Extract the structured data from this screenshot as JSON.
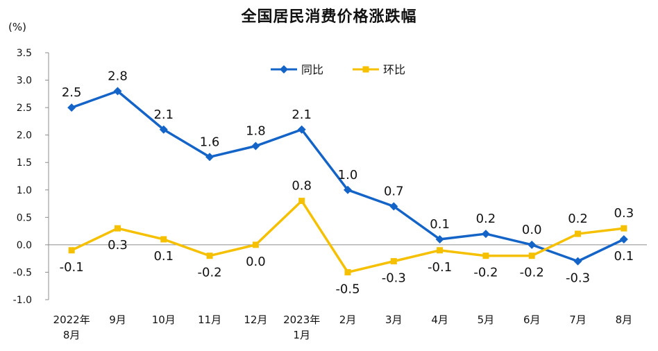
{
  "chart_data": {
    "type": "line",
    "title": "全国居民消费价格涨跌幅",
    "unit_label": "(%)",
    "x_categories": [
      [
        "2022年",
        "8月"
      ],
      [
        "9月"
      ],
      [
        "10月"
      ],
      [
        "11月"
      ],
      [
        "12月"
      ],
      [
        "2023年",
        "1月"
      ],
      [
        "2月"
      ],
      [
        "3月"
      ],
      [
        "4月"
      ],
      [
        "5月"
      ],
      [
        "6月"
      ],
      [
        "7月"
      ],
      [
        "8月"
      ]
    ],
    "y_ticks": [
      "3.5",
      "3.0",
      "2.5",
      "2.0",
      "1.5",
      "1.0",
      "0.5",
      "0.0",
      "-0.5",
      "-1.0"
    ],
    "ylim": [
      -1.0,
      3.5
    ],
    "legend_position": "top-center",
    "series": [
      {
        "name": "同比",
        "color": "#1464c8",
        "marker": "diamond",
        "values": [
          2.5,
          2.8,
          2.1,
          1.6,
          1.8,
          2.1,
          1.0,
          0.7,
          0.1,
          0.2,
          0.0,
          -0.3,
          0.1
        ],
        "labels": [
          "2.5",
          "2.8",
          "2.1",
          "1.6",
          "1.8",
          "2.1",
          "1.0",
          "0.7",
          "0.1",
          "0.2",
          "0.0",
          "-0.3",
          "0.1"
        ]
      },
      {
        "name": "环比",
        "color": "#f5c000",
        "marker": "square",
        "values": [
          -0.1,
          0.3,
          0.1,
          -0.2,
          0.0,
          0.8,
          -0.5,
          -0.3,
          -0.1,
          -0.2,
          -0.2,
          0.2,
          0.3
        ],
        "labels": [
          "-0.1",
          "0.3",
          "0.1",
          "-0.2",
          "0.0",
          "0.8",
          "-0.5",
          "-0.3",
          "-0.1",
          "-0.2",
          "-0.2",
          "0.2",
          "0.3"
        ]
      }
    ]
  }
}
